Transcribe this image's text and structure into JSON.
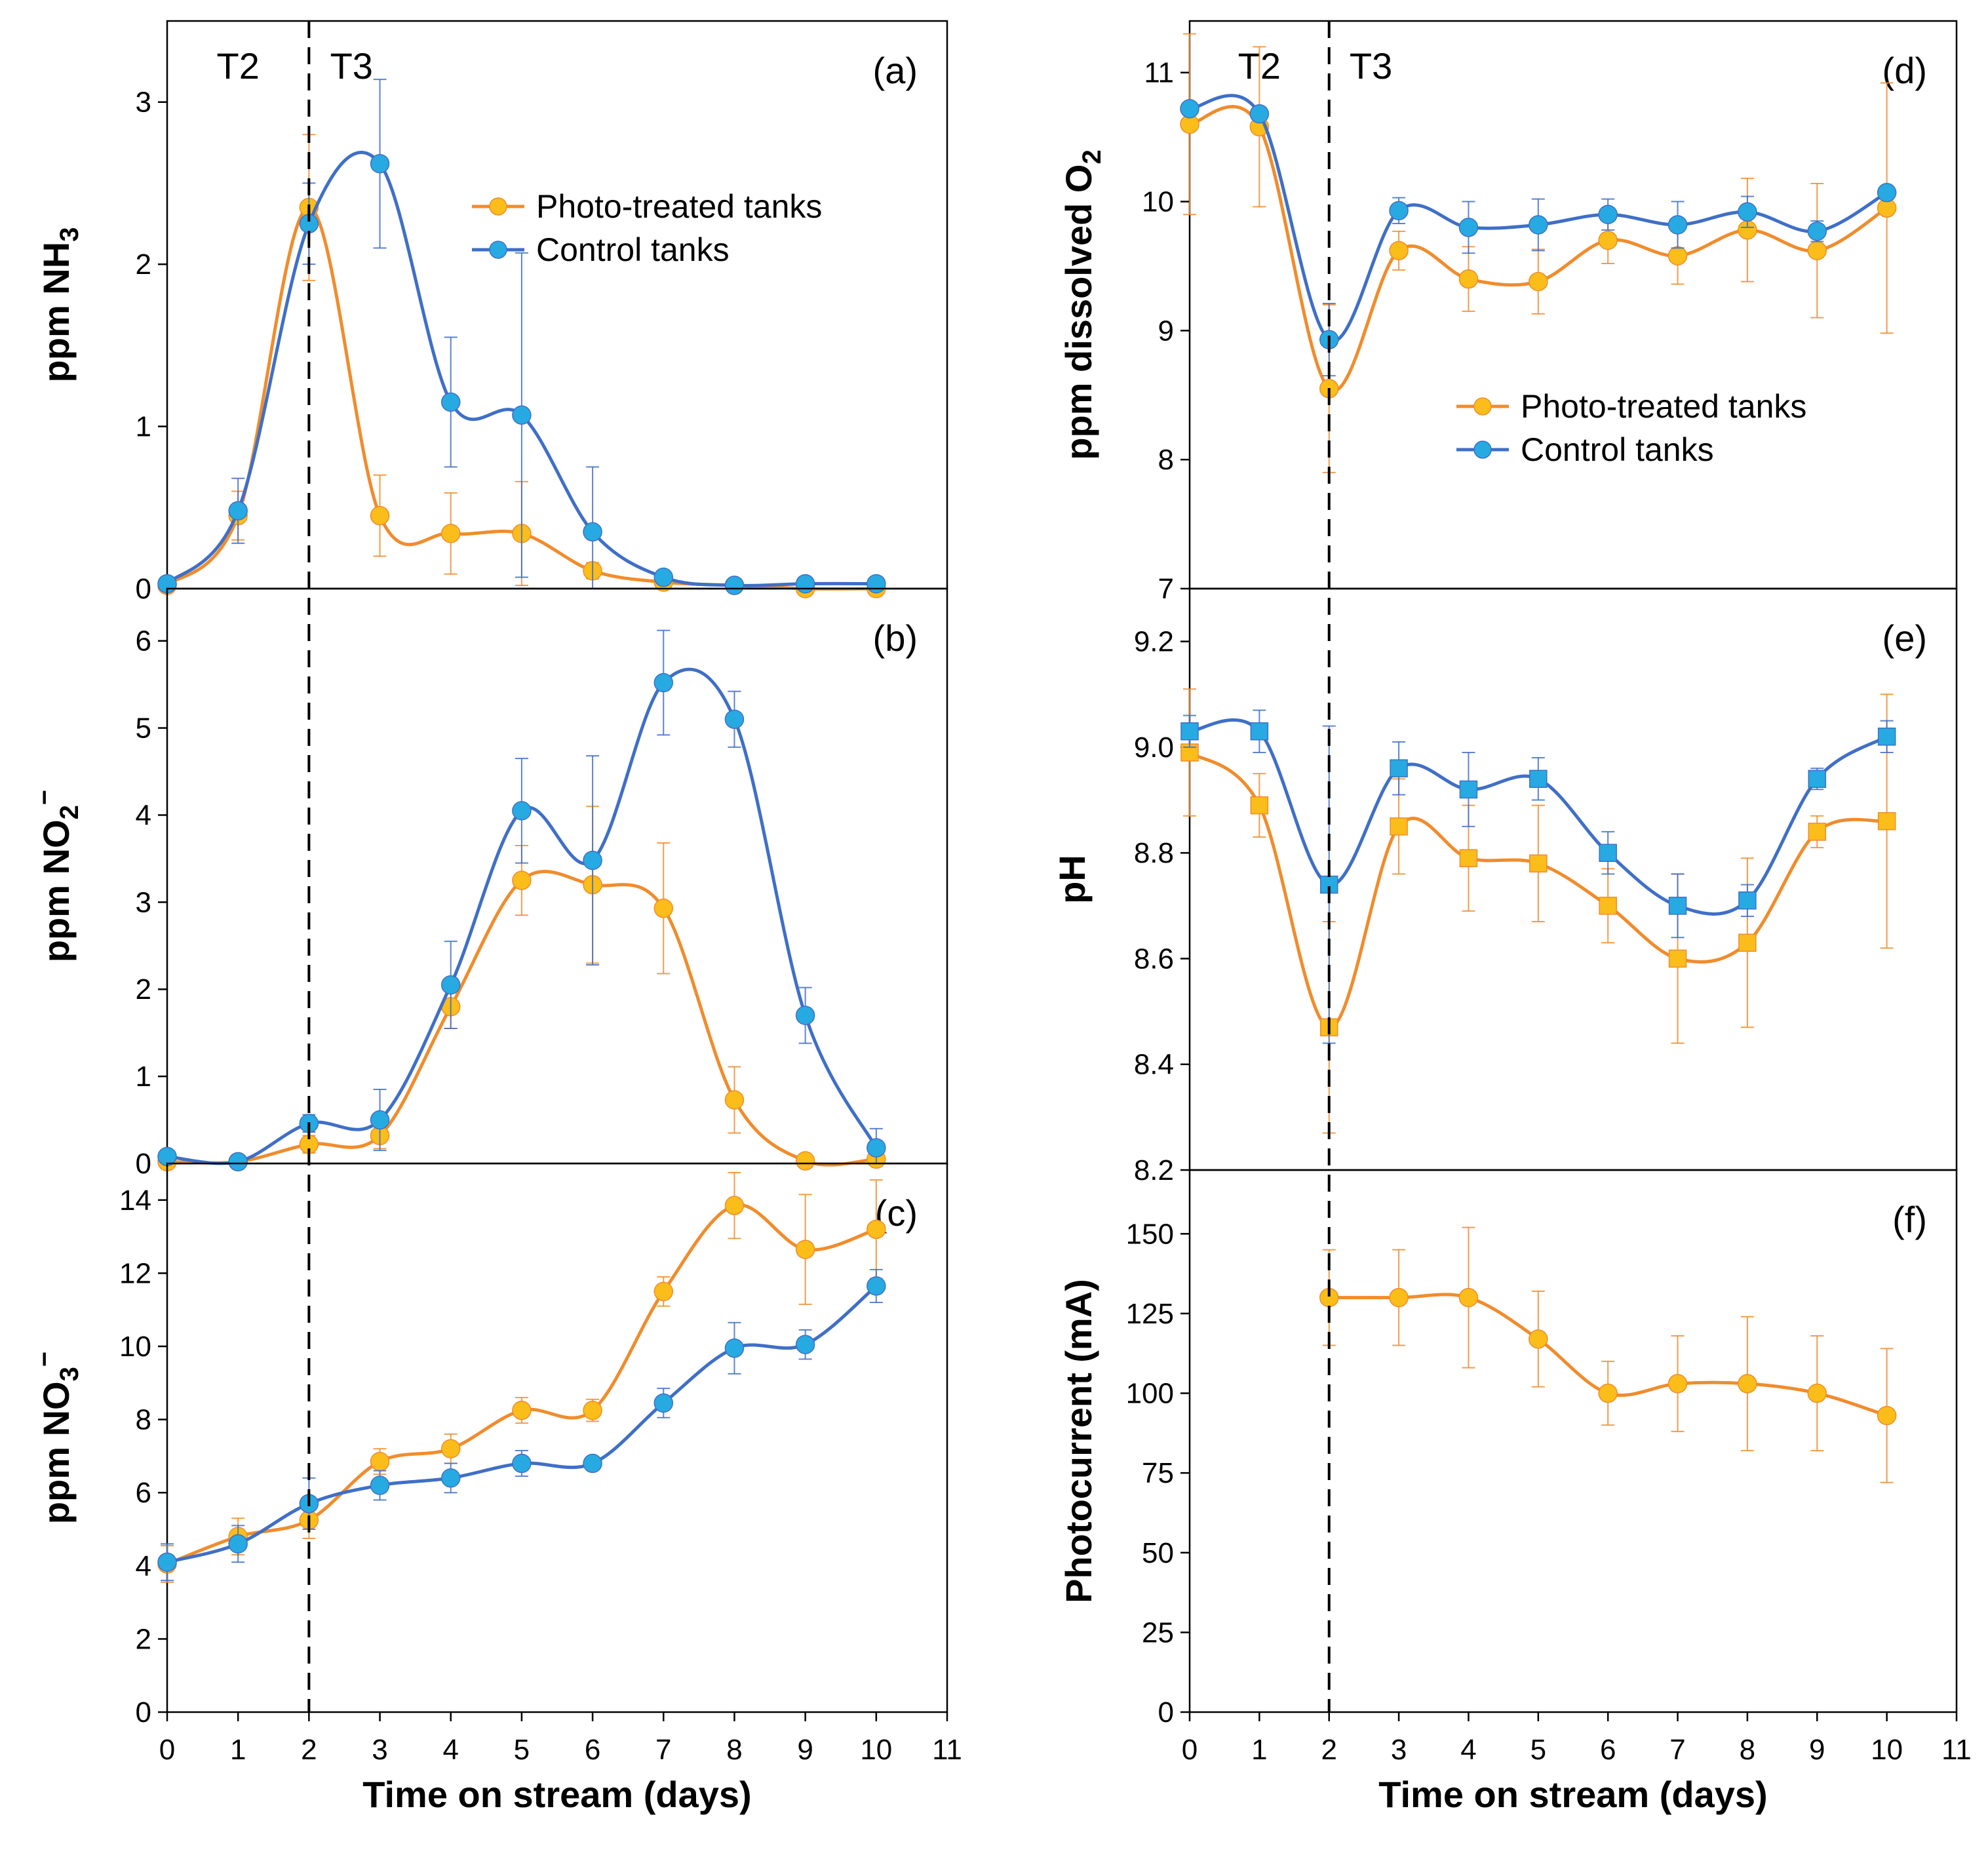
{
  "colors": {
    "photo": "#f08c2c",
    "photo_fill": "#fbbd1a",
    "control": "#3f6fc7",
    "control_fill": "#27aae1",
    "frame": "#000000"
  },
  "chart_data": [
    {
      "id": "a",
      "type": "line",
      "panel_label": "(a)",
      "xlabel": "",
      "ylabel": "ppm NH",
      "ylabel_sub": "3",
      "ylabel_sup": "",
      "xlim": [
        0,
        11
      ],
      "ylim": [
        0,
        3.5
      ],
      "yticks": [
        0,
        1,
        2,
        3
      ],
      "ytick_labels": [
        "0",
        "1",
        "2",
        "3"
      ],
      "xticks": [],
      "xtick_labels": [],
      "phase_labels": [
        "T2",
        "T3"
      ],
      "legend": {
        "position": "top-right",
        "entries": [
          "Photo-treated tanks",
          "Control tanks"
        ]
      },
      "x": [
        0,
        1,
        2,
        3,
        4,
        5,
        6,
        7,
        8,
        9,
        10
      ],
      "series": [
        {
          "name": "Photo-treated tanks",
          "marker": "circle",
          "values": [
            0.02,
            0.45,
            2.35,
            0.45,
            0.34,
            0.34,
            0.11,
            0.04,
            0.02,
            0.0,
            0.0
          ],
          "errors": [
            0.02,
            0.15,
            0.45,
            0.25,
            0.25,
            0.32,
            0.05,
            0.02,
            0.01,
            0.01,
            0.01
          ]
        },
        {
          "name": "Control tanks",
          "marker": "circle",
          "values": [
            0.03,
            0.48,
            2.25,
            2.62,
            1.15,
            1.07,
            0.35,
            0.07,
            0.02,
            0.03,
            0.03
          ],
          "errors": [
            0.02,
            0.2,
            0.25,
            0.52,
            0.4,
            1.0,
            0.4,
            0.03,
            0.01,
            0.01,
            0.01
          ]
        }
      ]
    },
    {
      "id": "b",
      "type": "line",
      "panel_label": "(b)",
      "xlabel": "",
      "ylabel": "ppm NO",
      "ylabel_sub": "2",
      "ylabel_sup": "−",
      "xlim": [
        0,
        11
      ],
      "ylim": [
        0,
        6.6
      ],
      "yticks": [
        0,
        1,
        2,
        3,
        4,
        5,
        6
      ],
      "ytick_labels": [
        "0",
        "1",
        "2",
        "3",
        "4",
        "5",
        "6"
      ],
      "xticks": [],
      "xtick_labels": [],
      "phase_labels": [],
      "legend": null,
      "x": [
        0,
        1,
        2,
        3,
        4,
        5,
        6,
        7,
        8,
        9,
        10
      ],
      "series": [
        {
          "name": "Photo-treated tanks",
          "marker": "circle",
          "values": [
            0.02,
            0.02,
            0.22,
            0.32,
            1.8,
            3.25,
            3.2,
            2.93,
            0.73,
            0.03,
            0.05
          ],
          "errors": [
            0.03,
            0.03,
            0.1,
            0.15,
            0.25,
            0.4,
            0.9,
            0.75,
            0.38,
            0.03,
            0.05
          ]
        },
        {
          "name": "Control tanks",
          "marker": "circle",
          "values": [
            0.08,
            0.02,
            0.46,
            0.5,
            2.05,
            4.05,
            3.48,
            5.52,
            5.1,
            1.7,
            0.18
          ],
          "errors": [
            0.05,
            0.03,
            0.1,
            0.35,
            0.5,
            0.6,
            1.2,
            0.6,
            0.32,
            0.32,
            0.22
          ]
        }
      ]
    },
    {
      "id": "c",
      "type": "line",
      "panel_label": "(c)",
      "xlabel": "Time on stream (days)",
      "ylabel": "ppm NO",
      "ylabel_sub": "3",
      "ylabel_sup": "−",
      "xlim": [
        0,
        11
      ],
      "ylim": [
        0,
        15
      ],
      "yticks": [
        0,
        2,
        4,
        6,
        8,
        10,
        12,
        14
      ],
      "ytick_labels": [
        "0",
        "2",
        "4",
        "6",
        "8",
        "10",
        "12",
        "14"
      ],
      "xticks": [
        0,
        1,
        2,
        3,
        4,
        5,
        6,
        7,
        8,
        9,
        10,
        11
      ],
      "xtick_labels": [
        "0",
        "1",
        "2",
        "3",
        "4",
        "5",
        "6",
        "7",
        "8",
        "9",
        "10",
        "11"
      ],
      "phase_labels": [],
      "legend": null,
      "x": [
        0,
        1,
        2,
        3,
        4,
        5,
        6,
        7,
        8,
        9,
        10
      ],
      "series": [
        {
          "name": "Photo-treated tanks",
          "marker": "circle",
          "values": [
            4.05,
            4.8,
            5.25,
            6.85,
            7.2,
            8.25,
            8.25,
            11.5,
            13.85,
            12.65,
            13.2
          ],
          "errors": [
            0.5,
            0.5,
            0.5,
            0.35,
            0.4,
            0.35,
            0.3,
            0.4,
            0.9,
            1.5,
            1.35
          ]
        },
        {
          "name": "Control tanks",
          "marker": "circle",
          "values": [
            4.1,
            4.6,
            5.7,
            6.2,
            6.4,
            6.8,
            6.8,
            8.45,
            9.95,
            10.05,
            11.65
          ],
          "errors": [
            0.5,
            0.5,
            0.7,
            0.4,
            0.4,
            0.35,
            0.15,
            0.4,
            0.7,
            0.4,
            0.45
          ]
        }
      ]
    },
    {
      "id": "d",
      "type": "line",
      "panel_label": "(d)",
      "xlabel": "",
      "ylabel": "ppm dissolved O",
      "ylabel_sub": "2",
      "ylabel_sup": "",
      "xlim": [
        0,
        11
      ],
      "ylim": [
        7,
        11.4
      ],
      "yticks": [
        7,
        8,
        9,
        10,
        11
      ],
      "ytick_labels": [
        "7",
        "8",
        "9",
        "10",
        "11"
      ],
      "xticks": [],
      "xtick_labels": [],
      "phase_labels": [
        "T2",
        "T3"
      ],
      "legend": {
        "position": "center-right",
        "entries": [
          "Photo-treated tanks",
          "Control tanks"
        ]
      },
      "x": [
        0,
        1,
        2,
        3,
        4,
        5,
        6,
        7,
        8,
        9,
        10
      ],
      "series": [
        {
          "name": "Photo-treated tanks",
          "marker": "circle",
          "values": [
            10.6,
            10.58,
            8.55,
            9.62,
            9.4,
            9.38,
            9.7,
            9.58,
            9.78,
            9.62,
            9.95
          ],
          "errors": [
            0.7,
            0.62,
            0.65,
            0.15,
            0.25,
            0.25,
            0.18,
            0.22,
            0.4,
            0.52,
            0.97
          ]
        },
        {
          "name": "Control tanks",
          "marker": "circle",
          "values": [
            10.72,
            10.68,
            8.93,
            9.93,
            9.8,
            9.82,
            9.9,
            9.82,
            9.92,
            9.77,
            10.07
          ],
          "errors": [
            0.05,
            0.05,
            0.28,
            0.1,
            0.2,
            0.2,
            0.12,
            0.18,
            0.12,
            0.08,
            0.05
          ]
        }
      ]
    },
    {
      "id": "e",
      "type": "line",
      "panel_label": "(e)",
      "xlabel": "",
      "ylabel": "pH",
      "ylabel_sub": "",
      "ylabel_sup": "",
      "xlim": [
        0,
        11
      ],
      "ylim": [
        8.2,
        9.3
      ],
      "yticks": [
        8.2,
        8.4,
        8.6,
        8.8,
        9.0,
        9.2
      ],
      "ytick_labels": [
        "8.2",
        "8.4",
        "8.6",
        "8.8",
        "9.0",
        "9.2"
      ],
      "xticks": [],
      "xtick_labels": [],
      "phase_labels": [],
      "legend": null,
      "x": [
        0,
        1,
        2,
        3,
        4,
        5,
        6,
        7,
        8,
        9,
        10
      ],
      "series": [
        {
          "name": "Photo-treated tanks",
          "marker": "square",
          "values": [
            8.99,
            8.89,
            8.47,
            8.85,
            8.79,
            8.78,
            8.7,
            8.6,
            8.63,
            8.84,
            8.86
          ],
          "errors": [
            0.12,
            0.06,
            0.2,
            0.09,
            0.1,
            0.11,
            0.07,
            0.16,
            0.16,
            0.03,
            0.24
          ]
        },
        {
          "name": "Control tanks",
          "marker": "square",
          "values": [
            9.03,
            9.03,
            8.74,
            8.96,
            8.92,
            8.94,
            8.8,
            8.7,
            8.71,
            8.94,
            9.02
          ],
          "errors": [
            0.03,
            0.04,
            0.3,
            0.05,
            0.07,
            0.04,
            0.04,
            0.06,
            0.03,
            0.02,
            0.03
          ]
        }
      ]
    },
    {
      "id": "f",
      "type": "line",
      "panel_label": "(f)",
      "xlabel": "Time on stream (days)",
      "ylabel": "Photocurrent (mA)",
      "ylabel_sub": "",
      "ylabel_sup": "",
      "xlim": [
        0,
        11
      ],
      "ylim": [
        0,
        170
      ],
      "yticks": [
        0,
        25,
        50,
        75,
        100,
        125,
        150
      ],
      "ytick_labels": [
        "0",
        "25",
        "50",
        "75",
        "100",
        "125",
        "150"
      ],
      "xticks": [
        0,
        1,
        2,
        3,
        4,
        5,
        6,
        7,
        8,
        9,
        10,
        11
      ],
      "xtick_labels": [
        "0",
        "1",
        "2",
        "3",
        "4",
        "5",
        "6",
        "7",
        "8",
        "9",
        "10",
        "11"
      ],
      "phase_labels": [],
      "legend": null,
      "x": [
        2,
        3,
        4,
        5,
        6,
        7,
        8,
        9,
        10
      ],
      "series": [
        {
          "name": "Photo-treated tanks",
          "marker": "circle",
          "values": [
            130,
            130,
            130,
            117,
            100,
            103,
            103,
            100,
            93
          ],
          "errors": [
            15,
            15,
            22,
            15,
            10,
            15,
            21,
            18,
            21
          ]
        }
      ]
    }
  ]
}
